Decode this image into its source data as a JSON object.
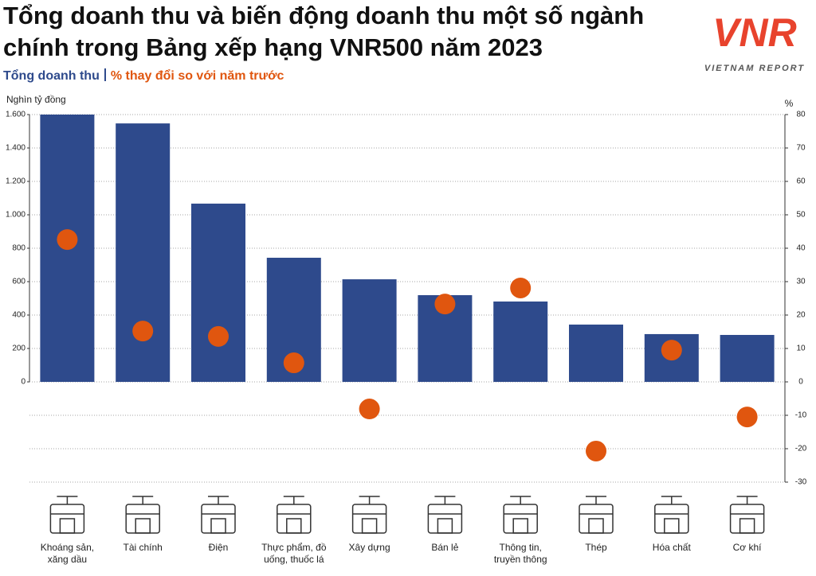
{
  "chart_data": {
    "type": "combo",
    "title": "Tổng doanh thu và biến động doanh thu một số ngành chính trong Bảng xếp hạng VNR500 năm 2023",
    "logo": {
      "text": "VNR",
      "tagline": "VIETNAM REPORT"
    },
    "y_label": "Nghìn tỷ đồng",
    "y2_label": "%",
    "categories": [
      "Khoáng sản, xăng dầu",
      "Tài chính",
      "Điện",
      "Thực phẩm, đồ uống, thuốc lá",
      "Xây dựng",
      "Bán lẻ",
      "Thông tin, truyền thông",
      "Thép",
      "Hóa chất",
      "Cơ khí"
    ],
    "series": [
      {
        "name": "Tổng doanh thu",
        "type": "bar",
        "color": "#2e4a8c",
        "values": [
          1600,
          1547,
          1067,
          743,
          614,
          519,
          481,
          343,
          286,
          281
        ]
      },
      {
        "name": "% thay đổi so với năm trước",
        "type": "scatter",
        "axis": "y2",
        "color": "#e0560f",
        "values": [
          42.6,
          15.2,
          13.6,
          5.7,
          -8.1,
          23.3,
          28.1,
          -20.7,
          9.5,
          -10.5
        ]
      }
    ],
    "ylim": [
      -600,
      1600
    ],
    "yticks": [
      0,
      200,
      400,
      600,
      800,
      {
        "value": 1000,
        "label": "1.000"
      },
      {
        "value": 1200,
        "label": "1.200"
      },
      {
        "value": 1400,
        "label": "1.400"
      },
      {
        "value": 1600,
        "label": "1.600"
      }
    ],
    "y2lim": [
      -30,
      80
    ],
    "y2ticks": [
      -30,
      -20,
      -10,
      0,
      10,
      20,
      30,
      40,
      50,
      60,
      70,
      80
    ],
    "grid": true
  }
}
